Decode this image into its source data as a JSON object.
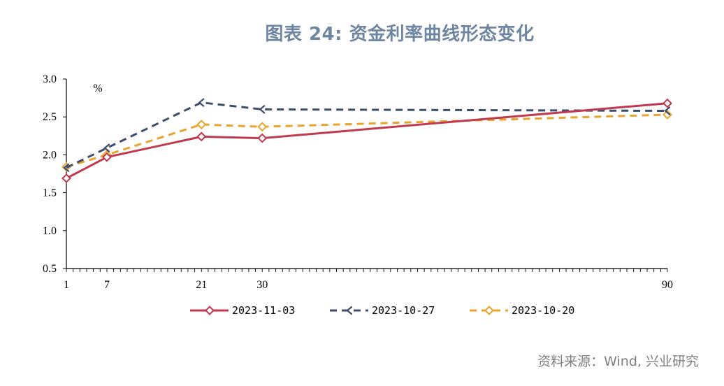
{
  "title": "图表 24: 资金利率曲线形态变化",
  "source": "资料来源：Wind, 兴业研究",
  "chart_data": {
    "type": "line",
    "x": [
      1,
      7,
      21,
      30,
      90
    ],
    "x_tick_labels": [
      "1",
      "7",
      "21",
      "30",
      "90"
    ],
    "xlim": [
      1,
      90
    ],
    "ylim": [
      0.5,
      3.0
    ],
    "y_ticks": [
      0.5,
      1.0,
      1.5,
      2.0,
      2.5,
      3.0
    ],
    "y_tick_labels": [
      "0.5",
      "1.0",
      "1.5",
      "2.0",
      "2.5",
      "3.0"
    ],
    "y_unit": "%",
    "grid": false,
    "legend_position": "bottom",
    "series": [
      {
        "name": "2023-11-03",
        "values": [
          1.69,
          1.97,
          2.24,
          2.22,
          2.68
        ],
        "color": "#c0394f",
        "style": "solid",
        "marker": "diamond"
      },
      {
        "name": "2023-10-27",
        "values": [
          1.83,
          2.09,
          2.69,
          2.6,
          2.58
        ],
        "color": "#3b4e6b",
        "style": "dashed",
        "marker": "arrow"
      },
      {
        "name": "2023-10-20",
        "values": [
          1.84,
          2.0,
          2.4,
          2.37,
          2.53
        ],
        "color": "#e8a42c",
        "style": "dashed",
        "marker": "diamond"
      }
    ]
  }
}
